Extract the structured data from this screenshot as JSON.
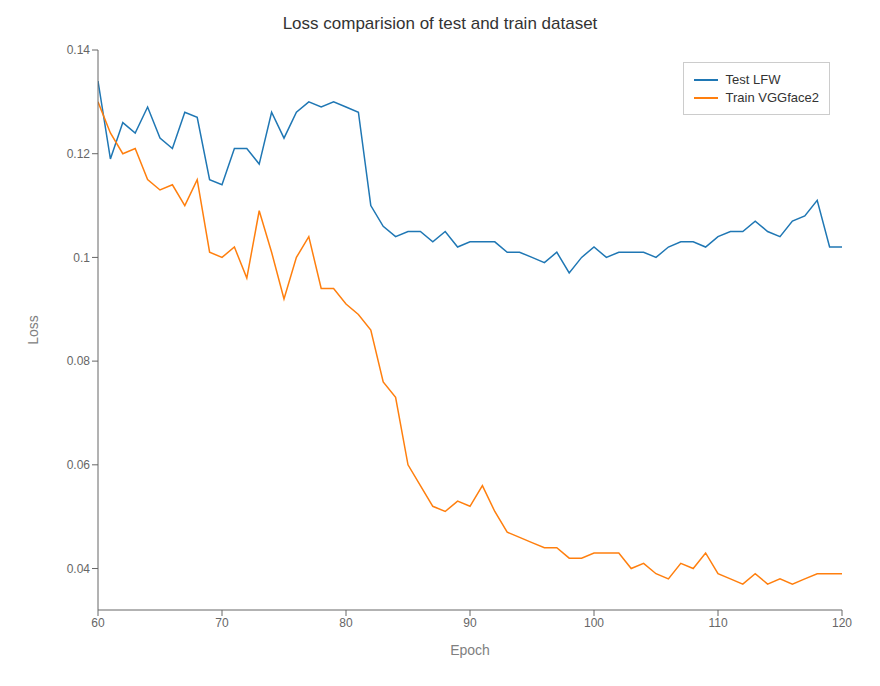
{
  "chart_data": {
    "type": "line",
    "title": "Loss comparision of test and train dataset",
    "x_label": "Epoch",
    "y_label": "Loss",
    "x": [
      60,
      61,
      62,
      63,
      64,
      65,
      66,
      67,
      68,
      69,
      70,
      71,
      72,
      73,
      74,
      75,
      76,
      77,
      78,
      79,
      80,
      81,
      82,
      83,
      84,
      85,
      86,
      87,
      88,
      89,
      90,
      91,
      92,
      93,
      94,
      95,
      96,
      97,
      98,
      99,
      100,
      101,
      102,
      103,
      104,
      105,
      106,
      107,
      108,
      109,
      110,
      111,
      112,
      113,
      114,
      115,
      116,
      117,
      118,
      119,
      120
    ],
    "series": [
      {
        "name": "Test LFW",
        "color": "#1f77b4",
        "values": [
          0.134,
          0.119,
          0.126,
          0.124,
          0.129,
          0.123,
          0.121,
          0.128,
          0.127,
          0.115,
          0.114,
          0.121,
          0.121,
          0.118,
          0.128,
          0.123,
          0.128,
          0.13,
          0.129,
          0.13,
          0.129,
          0.128,
          0.11,
          0.106,
          0.104,
          0.105,
          0.105,
          0.103,
          0.105,
          0.102,
          0.103,
          0.103,
          0.103,
          0.101,
          0.101,
          0.1,
          0.099,
          0.101,
          0.097,
          0.1,
          0.102,
          0.1,
          0.101,
          0.101,
          0.101,
          0.1,
          0.102,
          0.103,
          0.103,
          0.102,
          0.104,
          0.105,
          0.105,
          0.107,
          0.105,
          0.104,
          0.107,
          0.108,
          0.111,
          0.102,
          0.102
        ]
      },
      {
        "name": "Train VGGface2",
        "color": "#ff7f0e",
        "values": [
          0.13,
          0.124,
          0.12,
          0.121,
          0.115,
          0.113,
          0.114,
          0.11,
          0.115,
          0.101,
          0.1,
          0.102,
          0.096,
          0.109,
          0.101,
          0.092,
          0.1,
          0.104,
          0.094,
          0.094,
          0.091,
          0.089,
          0.086,
          0.076,
          0.073,
          0.06,
          0.056,
          0.052,
          0.051,
          0.053,
          0.052,
          0.056,
          0.051,
          0.047,
          0.046,
          0.045,
          0.044,
          0.044,
          0.042,
          0.042,
          0.043,
          0.043,
          0.043,
          0.04,
          0.041,
          0.039,
          0.038,
          0.041,
          0.04,
          0.043,
          0.039,
          0.038,
          0.037,
          0.039,
          0.037,
          0.038,
          0.037,
          0.038,
          0.039,
          0.039,
          0.039
        ]
      }
    ],
    "xlim": [
      60,
      120
    ],
    "xticks": [
      60,
      70,
      80,
      90,
      100,
      110,
      120
    ],
    "ylim": [
      0.032,
      0.14
    ],
    "yticks": [
      0.04,
      0.06,
      0.08,
      0.1,
      0.12,
      0.14
    ],
    "grid": false,
    "legend": "upper right"
  }
}
